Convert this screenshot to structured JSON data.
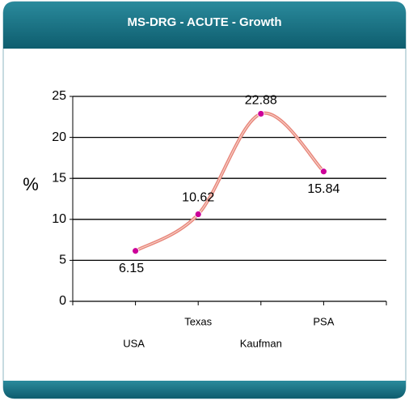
{
  "chart_data": {
    "type": "line",
    "title": "MS-DRG - ACUTE - Growth",
    "y_label": "%",
    "categories": [
      "USA",
      "Texas",
      "Kaufman",
      "PSA"
    ],
    "values": [
      6.15,
      10.62,
      22.88,
      15.84
    ],
    "color": "#e8857a",
    "marker_color": "#cc0099",
    "ylim": [
      0,
      25
    ],
    "yticks": [
      0,
      5,
      10,
      15,
      20,
      25
    ],
    "grid": true
  }
}
